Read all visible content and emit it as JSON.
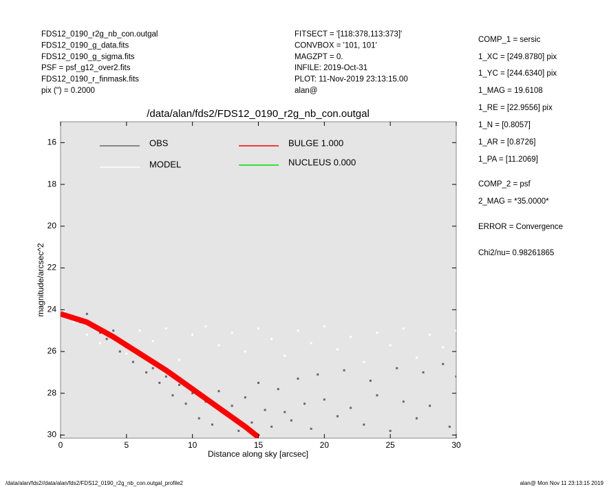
{
  "header": {
    "left_lines": [
      "FDS12_0190_r2g_nb_con.outgal",
      "FDS12_0190_g_data.fits",
      "FDS12_0190_g_sigma.fits",
      "PSF     = psf_g12_over2.fits",
      "FDS12_0190_r_finmask.fits",
      "pix (\") =  0.2000"
    ],
    "middle_lines": [
      "FITSECT = '[118:378,113:373]'",
      "CONVBOX = '101, 101'",
      "MAGZPT =              0.",
      "INFILE: 2019-Oct-31",
      "PLOT: 11-Nov-2019 23:13:15.00",
      "alan@"
    ],
    "right_lines": [
      "COMP_1  = sersic",
      "1_XC    = [249.8780] pix",
      "1_YC    = [244.6340] pix",
      "1_MAG   = 19.6108",
      "1_RE    = [22.9556] pix",
      "1_N     = [0.8057]",
      "1_AR    = [0.8726]",
      "1_PA    = [11.2069]",
      "COMP_2  = psf",
      "2_MAG   = *35.0000*",
      "ERROR   = Convergence",
      "Chi2/nu=      0.98261865"
    ]
  },
  "footer": {
    "left": "/data/alan/fds2//data/alan/fds2/FDS12_0190_r2g_nb_con.outgal_profile2",
    "right": "alan@  Mon Nov 11 23:13:15 2019"
  },
  "chart_data": {
    "type": "scatter",
    "title": "/data/alan/fds2/FDS12_0190_r2g_nb_con.outgal",
    "x_label": "Distance along sky [arcsec]",
    "y_label": "magnitude/arcsec^2",
    "xlim": [
      0,
      30
    ],
    "xticks": [
      0,
      5,
      10,
      15,
      20,
      25,
      30
    ],
    "ylim": [
      15,
      30.15
    ],
    "yticks": [
      16,
      18,
      20,
      22,
      24,
      26,
      28,
      30
    ],
    "y_inverted": true,
    "background": "#e5e5e5",
    "series": [
      {
        "name": "OBS",
        "kind": "points",
        "color": "#666666",
        "x": [
          0.5,
          1,
          1.5,
          2,
          2.5,
          3,
          3.5,
          4,
          4.5,
          5,
          5.5,
          6,
          6.5,
          7,
          7.5,
          8,
          8.5,
          9,
          9.5,
          10,
          10.5,
          11,
          11.5,
          12,
          12.5,
          13,
          13.5,
          14,
          14.5,
          15,
          15.5,
          16,
          16.5,
          17,
          17.5,
          18,
          18.5,
          19,
          19.5,
          20,
          21,
          21.5,
          22,
          23,
          23.5,
          24,
          25,
          25.5,
          26,
          27,
          27.5,
          28,
          29,
          29.5,
          30
        ],
        "values": [
          24.3,
          24.4,
          24.6,
          24.2,
          24.8,
          25.1,
          25.4,
          25.0,
          26.0,
          25.8,
          26.5,
          26.2,
          27.0,
          26.8,
          27.5,
          27.2,
          28.1,
          27.6,
          28.5,
          28.0,
          29.2,
          28.4,
          29.5,
          27.9,
          29.0,
          28.6,
          29.8,
          28.2,
          29.4,
          27.5,
          28.8,
          29.6,
          27.8,
          28.9,
          29.3,
          27.3,
          28.5,
          29.7,
          27.1,
          28.3,
          29.1,
          26.9,
          28.7,
          29.5,
          27.4,
          28.1,
          29.8,
          26.8,
          28.4,
          29.2,
          27.0,
          28.6,
          26.6,
          29.6,
          27.2
        ]
      },
      {
        "name": "MODEL",
        "kind": "points",
        "color": "#ffffff",
        "x": [
          0.3,
          1,
          2,
          3,
          4,
          5,
          6,
          7,
          8,
          9,
          10,
          11,
          12,
          13,
          14,
          15,
          16,
          17,
          18,
          19,
          20,
          21,
          22,
          23,
          24,
          25,
          26,
          27,
          28,
          29,
          30
        ],
        "values": [
          24.1,
          24.6,
          25.2,
          25.6,
          25.3,
          26.1,
          25.0,
          25.5,
          24.9,
          26.4,
          25.2,
          24.8,
          25.7,
          25.1,
          26.0,
          24.9,
          25.4,
          26.2,
          25.0,
          25.6,
          24.8,
          25.9,
          25.3,
          26.5,
          25.1,
          25.7,
          24.9,
          26.3,
          25.2,
          25.8,
          25.0
        ]
      },
      {
        "name": "BULGE  1.000",
        "kind": "line",
        "color": "#ff0000",
        "x": [
          0,
          2,
          4,
          6,
          8,
          10,
          12,
          14,
          15
        ],
        "values": [
          24.2,
          24.6,
          25.3,
          26.1,
          26.9,
          27.8,
          28.7,
          29.6,
          30.1
        ]
      },
      {
        "name": "NUCLEUS  0.000",
        "kind": "line",
        "color": "#00dd00",
        "x": [],
        "values": []
      }
    ]
  }
}
